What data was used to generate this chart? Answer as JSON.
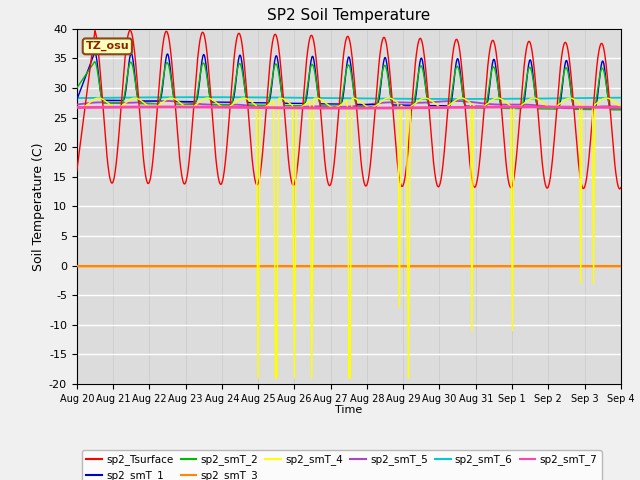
{
  "title": "SP2 Soil Temperature",
  "ylabel": "Soil Temperature (C)",
  "xlabel": "Time",
  "ylim": [
    -20,
    40
  ],
  "x_tick_labels": [
    "Aug 20",
    "Aug 21",
    "Aug 22",
    "Aug 23",
    "Aug 24",
    "Aug 25",
    "Aug 26",
    "Aug 27",
    "Aug 28",
    "Aug 29",
    "Aug 30",
    "Aug 31",
    "Sep 1",
    "Sep 2",
    "Sep 3",
    "Sep 4"
  ],
  "tz_label": "TZ_osu",
  "fig_bg": "#f0f0f0",
  "plot_bg": "#dcdcdc",
  "grid_color": "#ffffff",
  "colors": {
    "sp2_Tsurface": "#ff0000",
    "sp2_smT_1": "#0000cc",
    "sp2_smT_2": "#00bb00",
    "sp2_smT_3": "#ff8800",
    "sp2_smT_4": "#ffff00",
    "sp2_smT_5": "#aa44cc",
    "sp2_smT_6": "#00cccc",
    "sp2_smT_7": "#ff44aa"
  },
  "n_days": 15,
  "pts_per_day": 96
}
